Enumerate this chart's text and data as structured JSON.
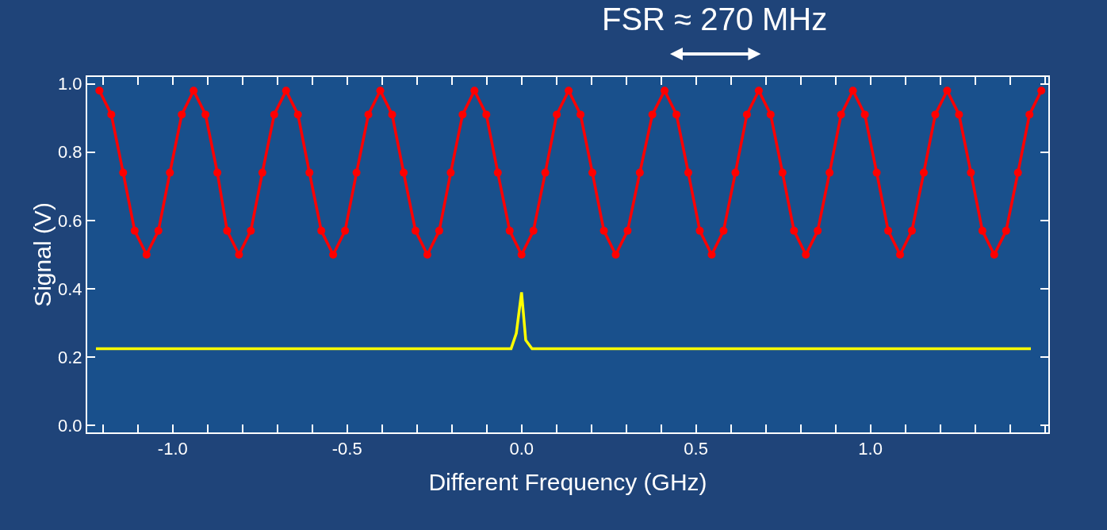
{
  "chart_data": {
    "type": "line",
    "annotations": [
      "FSR ≈ 270 MHz"
    ],
    "xlabel": "Different Frequency (GHz)",
    "ylabel": "Signal (V)",
    "xlim": [
      -1.245,
      1.51
    ],
    "ylim": [
      -0.02,
      1.02
    ],
    "xticks": [
      {
        "value": -1.2,
        "label": null
      },
      {
        "value": -1.1,
        "label": null
      },
      {
        "value": -1.0,
        "label": "-1.0"
      },
      {
        "value": -0.9,
        "label": null
      },
      {
        "value": -0.8,
        "label": null
      },
      {
        "value": -0.7,
        "label": null
      },
      {
        "value": -0.6,
        "label": null
      },
      {
        "value": -0.5,
        "label": "-0.5"
      },
      {
        "value": -0.4,
        "label": null
      },
      {
        "value": -0.3,
        "label": null
      },
      {
        "value": -0.2,
        "label": null
      },
      {
        "value": -0.1,
        "label": null
      },
      {
        "value": 0,
        "label": "0.0"
      },
      {
        "value": 0.1,
        "label": null
      },
      {
        "value": 0.2,
        "label": null
      },
      {
        "value": 0.3,
        "label": null
      },
      {
        "value": 0.4,
        "label": null
      },
      {
        "value": 0.5,
        "label": "0.5"
      },
      {
        "value": 0.6,
        "label": null
      },
      {
        "value": 0.7,
        "label": null
      },
      {
        "value": 0.8,
        "label": null
      },
      {
        "value": 0.9,
        "label": null
      },
      {
        "value": 1.0,
        "label": "1.0"
      },
      {
        "value": 1.1,
        "label": null
      },
      {
        "value": 1.2,
        "label": null
      },
      {
        "value": 1.3,
        "label": null
      },
      {
        "value": 1.4,
        "label": null
      },
      {
        "value": 1.5,
        "label": null
      }
    ],
    "yticks": [
      {
        "value": 0,
        "label": "0.0"
      },
      {
        "value": 0.2,
        "label": "0.2"
      },
      {
        "value": 0.4,
        "label": "0.4"
      },
      {
        "value": 0.6,
        "label": "0.6"
      },
      {
        "value": 0.8,
        "label": "0.8"
      },
      {
        "value": 1.0,
        "label": "1.0"
      }
    ],
    "grid": false,
    "series": [
      {
        "color": "#ff0000",
        "marker": "circle",
        "x": [
          -1.21,
          -1.176,
          -1.142,
          -1.109,
          -1.075,
          -1.041,
          -1.008,
          -0.974,
          -0.94,
          -0.906,
          -0.872,
          -0.844,
          -0.81,
          -0.776,
          -0.743,
          -0.709,
          -0.675,
          -0.641,
          -0.608,
          -0.574,
          -0.54,
          -0.506,
          -0.473,
          -0.439,
          -0.405,
          -0.371,
          -0.338,
          -0.304,
          -0.27,
          -0.236,
          -0.203,
          -0.169,
          -0.135,
          -0.101,
          -0.068,
          -0.034,
          0.0,
          0.034,
          0.068,
          0.101,
          0.135,
          0.169,
          0.203,
          0.236,
          0.27,
          0.304,
          0.339,
          0.375,
          0.41,
          0.444,
          0.478,
          0.511,
          0.545,
          0.579,
          0.613,
          0.646,
          0.68,
          0.714,
          0.748,
          0.781,
          0.815,
          0.849,
          0.883,
          0.916,
          0.95,
          0.984,
          1.018,
          1.051,
          1.085,
          1.119,
          1.153,
          1.186,
          1.22,
          1.254,
          1.288,
          1.321,
          1.355,
          1.389,
          1.423,
          1.456,
          1.49
        ],
        "values": [
          0.98,
          0.91,
          0.74,
          0.57,
          0.5,
          0.57,
          0.74,
          0.91,
          0.98,
          0.91,
          0.74,
          0.57,
          0.5,
          0.57,
          0.74,
          0.91,
          0.98,
          0.91,
          0.74,
          0.57,
          0.5,
          0.57,
          0.74,
          0.91,
          0.98,
          0.91,
          0.74,
          0.57,
          0.5,
          0.57,
          0.74,
          0.91,
          0.98,
          0.91,
          0.74,
          0.57,
          0.5,
          0.57,
          0.74,
          0.91,
          0.98,
          0.91,
          0.74,
          0.57,
          0.5,
          0.57,
          0.74,
          0.91,
          0.98,
          0.91,
          0.74,
          0.57,
          0.5,
          0.57,
          0.74,
          0.91,
          0.98,
          0.91,
          0.74,
          0.57,
          0.5,
          0.57,
          0.74,
          0.91,
          0.98,
          0.91,
          0.74,
          0.57,
          0.5,
          0.57,
          0.74,
          0.91,
          0.98,
          0.91,
          0.74,
          0.57,
          0.5,
          0.57,
          0.74,
          0.91,
          0.98
        ]
      },
      {
        "color": "#ffff00",
        "marker": "none",
        "x": [
          -1.22,
          -0.03,
          -0.015,
          0.0,
          0.012,
          0.03,
          1.46
        ],
        "values": [
          0.225,
          0.225,
          0.27,
          0.39,
          0.25,
          0.225,
          0.225
        ]
      }
    ]
  }
}
